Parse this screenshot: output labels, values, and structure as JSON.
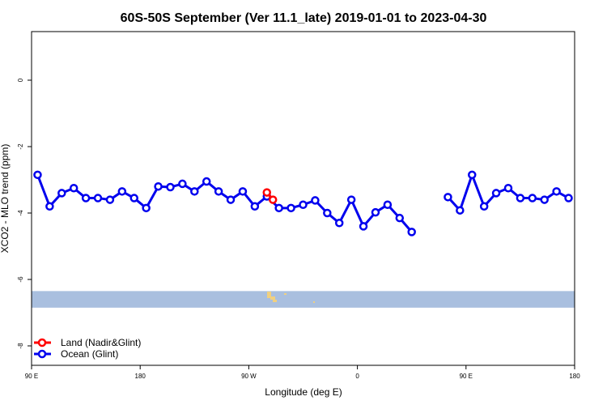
{
  "chart_data": {
    "type": "line",
    "title": "60S-50S September (Ver 11.1_late)   2019-01-01 to 2023-04-30",
    "xlabel": "Longitude (deg E)",
    "ylabel": "XCO2 - MLO trend (ppm)",
    "xlim": [
      90,
      450
    ],
    "ylim": [
      -8.3,
      1.4
    ],
    "x_ticks": [
      {
        "value": 90,
        "label": "90 E"
      },
      {
        "value": 180,
        "label": "180"
      },
      {
        "value": 270,
        "label": "90 W"
      },
      {
        "value": 360,
        "label": "0"
      },
      {
        "value": 450,
        "label": "90 E"
      },
      {
        "value": 540,
        "label": "180"
      }
    ],
    "y_ticks": [
      {
        "value": 0,
        "label": "0"
      },
      {
        "value": -2,
        "label": "-2"
      },
      {
        "value": -4,
        "label": "-4"
      },
      {
        "value": -6,
        "label": "-6"
      },
      {
        "value": -8,
        "label": "-8"
      }
    ],
    "grid": false,
    "legend_position": "bottom-left",
    "background_band": {
      "y_top": -6.35,
      "y_bottom": -6.85,
      "color": "#a9bfdf"
    },
    "land_patches": {
      "color": "#f0d080"
    },
    "series": [
      {
        "name": "Land (Nadir&Glint)",
        "color": "#ff0000",
        "segments": [
          [
            {
              "x": 285,
              "y": -3.38
            },
            {
              "x": 290,
              "y": -3.6
            }
          ]
        ]
      },
      {
        "name": "Ocean (Glint)",
        "color": "#0000ee",
        "segments": [
          [
            {
              "x": 95,
              "y": -2.85
            },
            {
              "x": 105,
              "y": -3.8
            },
            {
              "x": 115,
              "y": -3.4
            },
            {
              "x": 125,
              "y": -3.25
            },
            {
              "x": 135,
              "y": -3.55
            },
            {
              "x": 145,
              "y": -3.55
            },
            {
              "x": 155,
              "y": -3.6
            },
            {
              "x": 165,
              "y": -3.35
            },
            {
              "x": 175,
              "y": -3.55
            },
            {
              "x": 185,
              "y": -3.85
            },
            {
              "x": 195,
              "y": -3.2
            },
            {
              "x": 205,
              "y": -3.22
            },
            {
              "x": 215,
              "y": -3.12
            },
            {
              "x": 225,
              "y": -3.35
            },
            {
              "x": 235,
              "y": -3.05
            },
            {
              "x": 245,
              "y": -3.35
            },
            {
              "x": 255,
              "y": -3.6
            },
            {
              "x": 265,
              "y": -3.35
            },
            {
              "x": 275,
              "y": -3.8
            },
            {
              "x": 285,
              "y": -3.5
            },
            {
              "x": 295,
              "y": -3.85
            },
            {
              "x": 305,
              "y": -3.85
            },
            {
              "x": 315,
              "y": -3.75
            },
            {
              "x": 325,
              "y": -3.62
            },
            {
              "x": 335,
              "y": -4.0
            },
            {
              "x": 345,
              "y": -4.3
            },
            {
              "x": 355,
              "y": -3.6
            },
            {
              "x": 365,
              "y": -4.4
            },
            {
              "x": 375,
              "y": -3.98
            },
            {
              "x": 385,
              "y": -3.75
            },
            {
              "x": 395,
              "y": -4.15
            },
            {
              "x": 405,
              "y": -4.57
            }
          ],
          [
            {
              "x": 435,
              "y": -3.52
            },
            {
              "x": 445,
              "y": -3.92
            },
            {
              "x": 455,
              "y": -2.85
            },
            {
              "x": 465,
              "y": -3.8
            },
            {
              "x": 475,
              "y": -3.4
            },
            {
              "x": 485,
              "y": -3.25
            },
            {
              "x": 495,
              "y": -3.55
            },
            {
              "x": 505,
              "y": -3.55
            },
            {
              "x": 515,
              "y": -3.6
            },
            {
              "x": 525,
              "y": -3.35
            },
            {
              "x": 535,
              "y": -3.55
            }
          ]
        ]
      }
    ]
  }
}
